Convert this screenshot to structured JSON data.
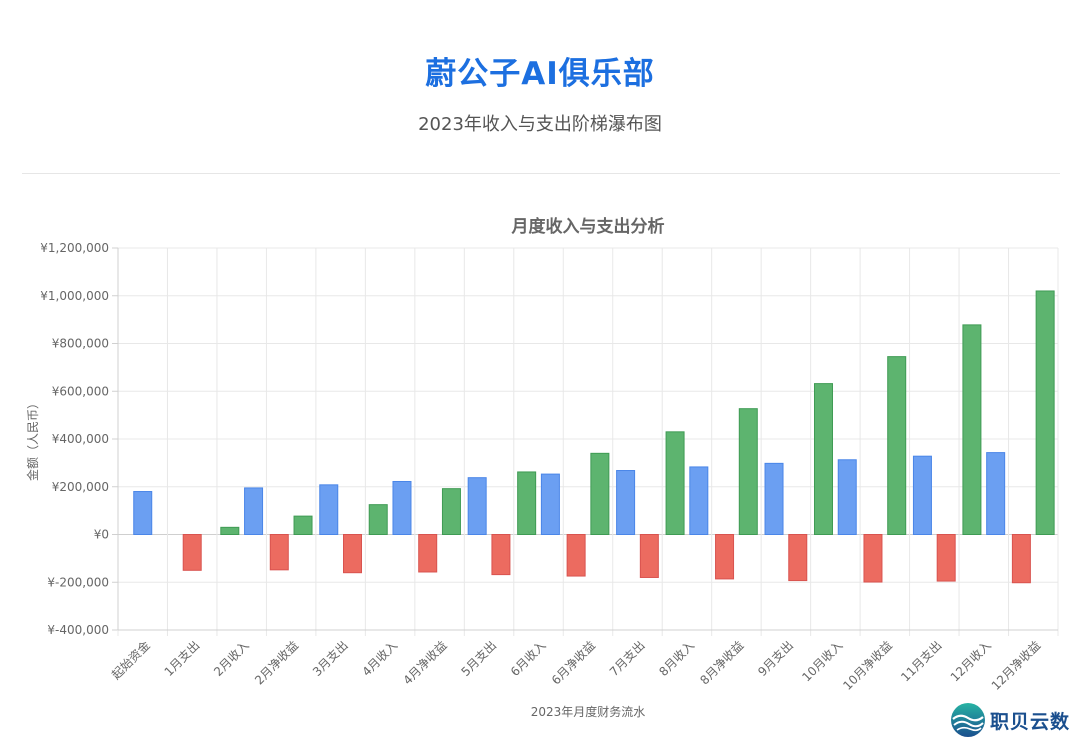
{
  "header": {
    "title": "蔚公子AI俱乐部",
    "subtitle": "2023年收入与支出阶梯瀑布图"
  },
  "brand": {
    "name": "职贝云数",
    "logo_icon": "wave-globe-logo-icon"
  },
  "colors": {
    "income": "#6b9ff2",
    "expense": "#ec6b60",
    "net": "#5db46f",
    "title": "#1c6fe0"
  },
  "chart_data": {
    "type": "bar",
    "title": "月度收入与支出分析",
    "xlabel": "2023年月度财务流水",
    "ylabel": "金额（人民币）",
    "ylim": [
      -400000,
      1200000
    ],
    "yticks": [
      -400000,
      -200000,
      0,
      200000,
      400000,
      600000,
      800000,
      1000000,
      1200000
    ],
    "ytick_labels": [
      "¥-400,000",
      "¥-200,000",
      "¥0",
      "¥200,000",
      "¥400,000",
      "¥600,000",
      "¥800,000",
      "¥1,000,000",
      "¥1,200,000"
    ],
    "grid": true,
    "categories": [
      "起始资金",
      "1月支出",
      "2月收入",
      "2月净收益",
      "3月支出",
      "4月收入",
      "4月净收益",
      "5月支出",
      "6月收入",
      "6月净收益",
      "7月支出",
      "8月收入",
      "8月净收益",
      "9月支出",
      "10月收入",
      "10月净收益",
      "11月支出",
      "12月收入",
      "12月净收益"
    ],
    "bars": [
      {
        "group": 0,
        "kind": "income",
        "value": 180000
      },
      {
        "group": 1,
        "kind": "expense",
        "value": -150000
      },
      {
        "group": 2,
        "kind": "net",
        "value": 30000
      },
      {
        "group": 2,
        "kind": "income",
        "value": 195000
      },
      {
        "group": 3,
        "kind": "expense",
        "value": -148000
      },
      {
        "group": 3,
        "kind": "net",
        "value": 77000
      },
      {
        "group": 4,
        "kind": "income",
        "value": 208000
      },
      {
        "group": 4,
        "kind": "expense",
        "value": -160000
      },
      {
        "group": 5,
        "kind": "net",
        "value": 125000
      },
      {
        "group": 5,
        "kind": "income",
        "value": 222000
      },
      {
        "group": 6,
        "kind": "expense",
        "value": -157000
      },
      {
        "group": 6,
        "kind": "net",
        "value": 192000
      },
      {
        "group": 7,
        "kind": "income",
        "value": 238000
      },
      {
        "group": 7,
        "kind": "expense",
        "value": -168000
      },
      {
        "group": 8,
        "kind": "net",
        "value": 262000
      },
      {
        "group": 8,
        "kind": "income",
        "value": 253000
      },
      {
        "group": 9,
        "kind": "expense",
        "value": -174000
      },
      {
        "group": 9,
        "kind": "net",
        "value": 340000
      },
      {
        "group": 10,
        "kind": "income",
        "value": 268000
      },
      {
        "group": 10,
        "kind": "expense",
        "value": -180000
      },
      {
        "group": 11,
        "kind": "net",
        "value": 430000
      },
      {
        "group": 11,
        "kind": "income",
        "value": 283000
      },
      {
        "group": 12,
        "kind": "expense",
        "value": -186000
      },
      {
        "group": 12,
        "kind": "net",
        "value": 527000
      },
      {
        "group": 13,
        "kind": "income",
        "value": 298000
      },
      {
        "group": 13,
        "kind": "expense",
        "value": -193000
      },
      {
        "group": 14,
        "kind": "net",
        "value": 632000
      },
      {
        "group": 14,
        "kind": "income",
        "value": 313000
      },
      {
        "group": 15,
        "kind": "expense",
        "value": -199000
      },
      {
        "group": 15,
        "kind": "net",
        "value": 745000
      },
      {
        "group": 16,
        "kind": "income",
        "value": 328000
      },
      {
        "group": 16,
        "kind": "expense",
        "value": -195000
      },
      {
        "group": 17,
        "kind": "net",
        "value": 878000
      },
      {
        "group": 17,
        "kind": "income",
        "value": 343000
      },
      {
        "group": 18,
        "kind": "expense",
        "value": -202000
      },
      {
        "group": 18,
        "kind": "net",
        "value": 1020000
      }
    ]
  }
}
